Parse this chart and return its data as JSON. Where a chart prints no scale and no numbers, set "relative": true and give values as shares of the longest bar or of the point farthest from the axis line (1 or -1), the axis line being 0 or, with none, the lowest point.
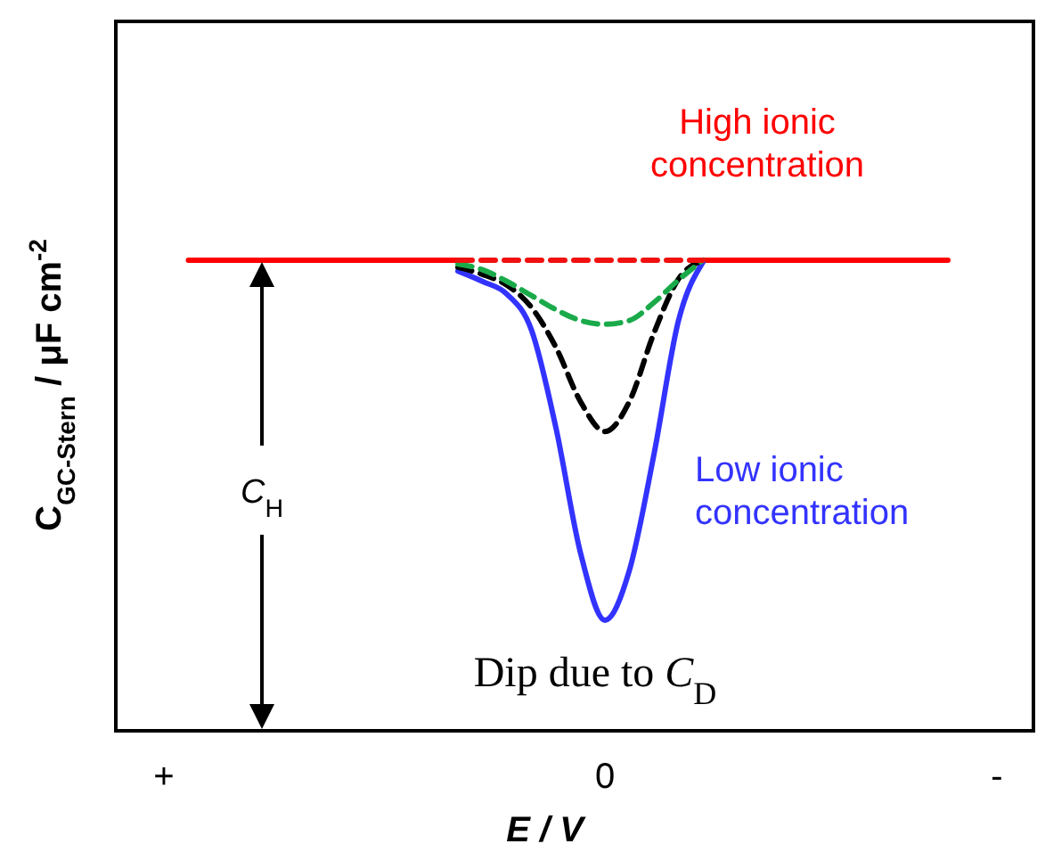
{
  "chart_data": {
    "type": "line",
    "relative": true,
    "xlabel": "E / V",
    "ylabel": "C$_{GC-Stern}$ / μF cm$^{-2}$",
    "categories": [
      "+",
      null,
      null,
      null,
      null,
      null,
      null,
      null,
      null,
      null,
      null,
      null,
      null,
      null,
      null,
      null,
      null,
      null,
      "0",
      null,
      null,
      null,
      null,
      null,
      null,
      null,
      null,
      null,
      null,
      null,
      null,
      null,
      null,
      null,
      "-"
    ],
    "series": [
      {
        "name": "High ionic concentration",
        "color": "#ff0000",
        "line_style": "solid",
        "values": [
          null,
          1,
          1,
          1,
          1,
          1,
          1,
          1,
          1,
          1,
          1,
          1,
          1,
          null,
          null,
          null,
          null,
          null,
          null,
          null,
          null,
          null,
          1,
          1,
          1,
          1,
          1,
          1,
          1,
          1,
          1,
          1,
          1,
          null,
          null
        ]
      },
      {
        "name": "Low ionic concentration",
        "color": "#3333ff",
        "line_style": "solid",
        "values": [
          null,
          null,
          null,
          null,
          null,
          null,
          null,
          null,
          null,
          null,
          null,
          null,
          0.977,
          0.955,
          0.928,
          0.852,
          0.644,
          0.379,
          0.235,
          0.341,
          0.587,
          0.871,
          0.996,
          null,
          null,
          null,
          null,
          null,
          null,
          null,
          null,
          null,
          null,
          null,
          null
        ]
      },
      {
        "color": "#000000",
        "line_style": "dashed",
        "values": [
          null,
          null,
          null,
          null,
          null,
          null,
          null,
          null,
          null,
          null,
          null,
          null,
          0.985,
          0.97,
          0.947,
          0.9,
          0.815,
          0.7,
          0.636,
          0.7,
          0.845,
          0.96,
          1,
          null,
          null,
          null,
          null,
          null,
          null,
          null,
          null,
          null,
          null,
          null,
          null
        ]
      },
      {
        "color": "#1aaa4a",
        "line_style": "dashed",
        "values": [
          null,
          null,
          null,
          null,
          null,
          null,
          null,
          null,
          null,
          null,
          null,
          null,
          0.992,
          0.98,
          0.955,
          0.925,
          0.895,
          0.872,
          0.864,
          0.872,
          0.91,
          0.958,
          1,
          null,
          null,
          null,
          null,
          null,
          null,
          null,
          null,
          null,
          null,
          null,
          null
        ]
      },
      {
        "color": "#f01010",
        "line_style": "dashed",
        "values": [
          null,
          null,
          null,
          null,
          null,
          null,
          null,
          null,
          null,
          null,
          null,
          null,
          1,
          1,
          1,
          1,
          1,
          1,
          1,
          1,
          1,
          1,
          1,
          null,
          null,
          null,
          null,
          null,
          null,
          null,
          null,
          null,
          null,
          null,
          null
        ]
      }
    ],
    "annotations": [
      "C$_{H}$",
      "Dip due to C$_{D}$"
    ]
  }
}
